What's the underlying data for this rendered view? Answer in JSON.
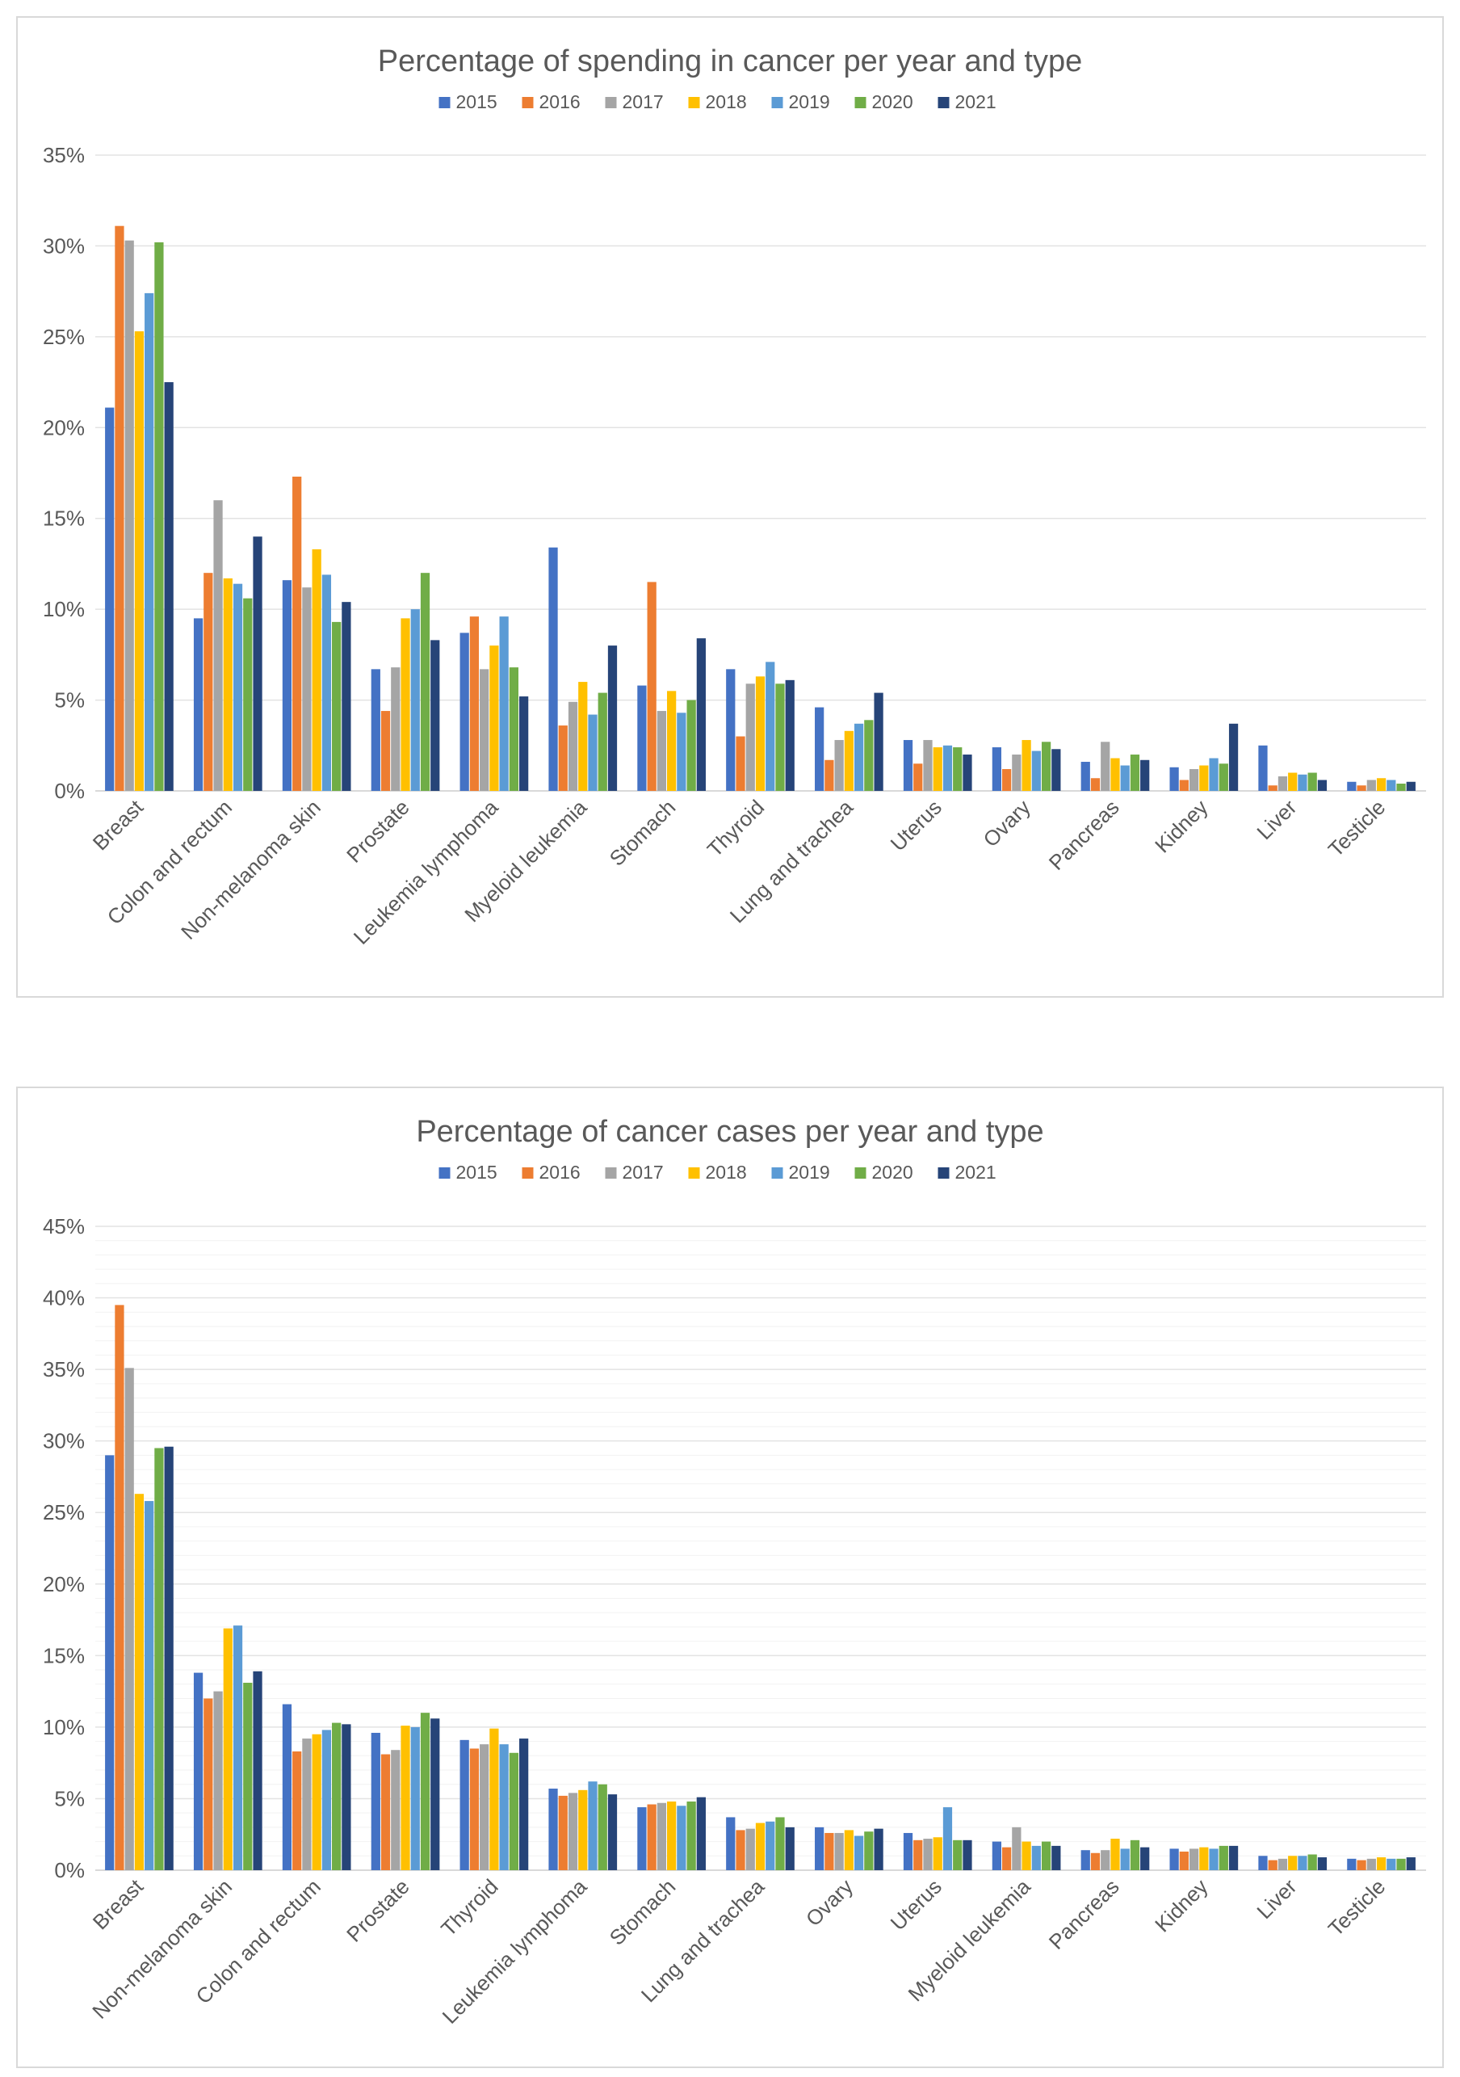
{
  "chart_data": [
    {
      "type": "bar",
      "title": "Percentage of spending in cancer per year and type",
      "xlabel": "",
      "ylabel": "",
      "ylim": [
        0,
        35
      ],
      "y_ticks": [
        0,
        5,
        10,
        15,
        20,
        25,
        30,
        35
      ],
      "y_tick_labels": [
        "0%",
        "5%",
        "10%",
        "15%",
        "20%",
        "25%",
        "30%",
        "35%"
      ],
      "grid": "major-horizontal",
      "legend_position": "top",
      "categories": [
        "Breast",
        "Colon and rectum",
        "Non-melanoma skin",
        "Prostate",
        "Leukemia lymphoma",
        "Myeloid leukemia",
        "Stomach",
        "Thyroid",
        "Lung and trachea",
        "Uterus",
        "Ovary",
        "Pancreas",
        "Kidney",
        "Liver",
        "Testicle"
      ],
      "series": [
        {
          "name": "2015",
          "color": "#4472c4",
          "values": [
            21.1,
            9.5,
            11.6,
            6.7,
            8.7,
            13.4,
            5.8,
            6.7,
            4.6,
            2.8,
            2.4,
            1.6,
            1.3,
            2.5,
            0.5
          ]
        },
        {
          "name": "2016",
          "color": "#ed7d31",
          "values": [
            31.1,
            12.0,
            17.3,
            4.4,
            9.6,
            3.6,
            11.5,
            3.0,
            1.7,
            1.5,
            1.2,
            0.7,
            0.6,
            0.3,
            0.3
          ]
        },
        {
          "name": "2017",
          "color": "#a5a5a5",
          "values": [
            30.3,
            16.0,
            11.2,
            6.8,
            6.7,
            4.9,
            4.4,
            5.9,
            2.8,
            2.8,
            2.0,
            2.7,
            1.2,
            0.8,
            0.6
          ]
        },
        {
          "name": "2018",
          "color": "#ffc000",
          "values": [
            25.3,
            11.7,
            13.3,
            9.5,
            8.0,
            6.0,
            5.5,
            6.3,
            3.3,
            2.4,
            2.8,
            1.8,
            1.4,
            1.0,
            0.7
          ]
        },
        {
          "name": "2019",
          "color": "#5b9bd5",
          "values": [
            27.4,
            11.4,
            11.9,
            10.0,
            9.6,
            4.2,
            4.3,
            7.1,
            3.7,
            2.5,
            2.2,
            1.4,
            1.8,
            0.9,
            0.6
          ]
        },
        {
          "name": "2020",
          "color": "#70ad47",
          "values": [
            30.2,
            10.6,
            9.3,
            12.0,
            6.8,
            5.4,
            5.0,
            5.9,
            3.9,
            2.4,
            2.7,
            2.0,
            1.5,
            1.0,
            0.4
          ]
        },
        {
          "name": "2021",
          "color": "#264478",
          "values": [
            22.5,
            14.0,
            10.4,
            8.3,
            5.2,
            8.0,
            8.4,
            6.1,
            5.4,
            2.0,
            2.3,
            1.7,
            3.7,
            0.6,
            0.5
          ]
        }
      ]
    },
    {
      "type": "bar",
      "title": "Percentage of cancer cases per year and type",
      "xlabel": "",
      "ylabel": "",
      "ylim": [
        0,
        45
      ],
      "y_ticks": [
        0,
        5,
        10,
        15,
        20,
        25,
        30,
        35,
        40,
        45
      ],
      "y_tick_labels": [
        "0%",
        "5%",
        "10%",
        "15%",
        "20%",
        "25%",
        "30%",
        "35%",
        "40%",
        "45%"
      ],
      "grid": "major-and-minor-horizontal",
      "legend_position": "top",
      "categories": [
        "Breast",
        "Non-melanoma skin",
        "Colon and rectum",
        "Prostate",
        "Thyroid",
        "Leukemia lymphoma",
        "Stomach",
        "Lung and trachea",
        "Ovary",
        "Uterus",
        "Myeloid leukemia",
        "Pancreas",
        "Kidney",
        "Liver",
        "Testicle"
      ],
      "series": [
        {
          "name": "2015",
          "color": "#4472c4",
          "values": [
            29.0,
            13.8,
            11.6,
            9.6,
            9.1,
            5.7,
            4.4,
            3.7,
            3.0,
            2.6,
            2.0,
            1.4,
            1.5,
            1.0,
            0.8
          ]
        },
        {
          "name": "2016",
          "color": "#ed7d31",
          "values": [
            39.5,
            12.0,
            8.3,
            8.1,
            8.5,
            5.2,
            4.6,
            2.8,
            2.6,
            2.1,
            1.6,
            1.2,
            1.3,
            0.7,
            0.7
          ]
        },
        {
          "name": "2017",
          "color": "#a5a5a5",
          "values": [
            35.1,
            12.5,
            9.2,
            8.4,
            8.8,
            5.4,
            4.7,
            2.9,
            2.6,
            2.2,
            3.0,
            1.4,
            1.5,
            0.8,
            0.8
          ]
        },
        {
          "name": "2018",
          "color": "#ffc000",
          "values": [
            26.3,
            16.9,
            9.5,
            10.1,
            9.9,
            5.6,
            4.8,
            3.3,
            2.8,
            2.3,
            2.0,
            2.2,
            1.6,
            1.0,
            0.9
          ]
        },
        {
          "name": "2019",
          "color": "#5b9bd5",
          "values": [
            25.8,
            17.1,
            9.8,
            10.0,
            8.8,
            6.2,
            4.5,
            3.4,
            2.4,
            4.4,
            1.7,
            1.5,
            1.5,
            1.0,
            0.8
          ]
        },
        {
          "name": "2020",
          "color": "#70ad47",
          "values": [
            29.5,
            13.1,
            10.3,
            11.0,
            8.2,
            6.0,
            4.8,
            3.7,
            2.7,
            2.1,
            2.0,
            2.1,
            1.7,
            1.1,
            0.8
          ]
        },
        {
          "name": "2021",
          "color": "#264478",
          "values": [
            29.6,
            13.9,
            10.2,
            10.6,
            9.2,
            5.3,
            5.1,
            3.0,
            2.9,
            2.1,
            1.7,
            1.6,
            1.7,
            0.9,
            0.9
          ]
        }
      ]
    }
  ]
}
